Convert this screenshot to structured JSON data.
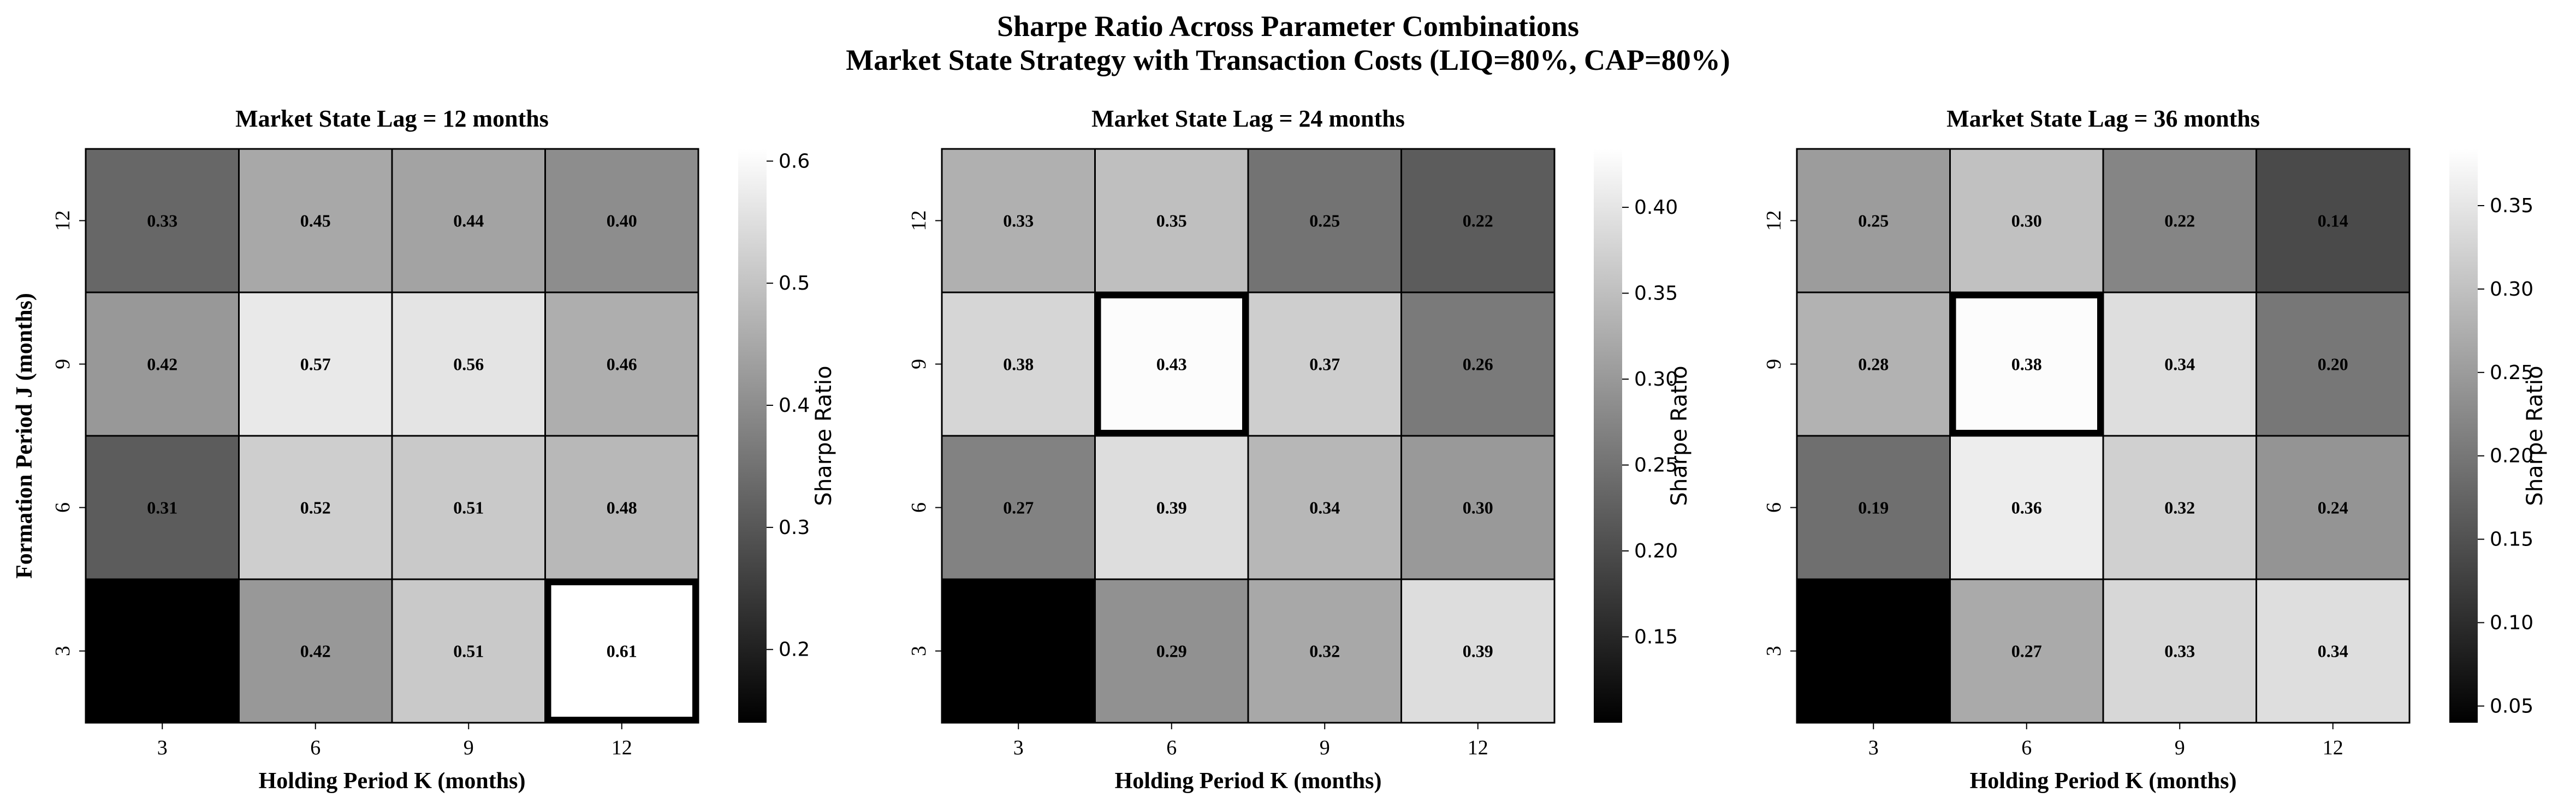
{
  "title_line1": "Sharpe Ratio Across Parameter Combinations",
  "title_line2": "Market State Strategy with Transaction Costs (LIQ=80%, CAP=80%)",
  "chart_data": [
    {
      "type": "heatmap",
      "title": "Market State Lag = 12 months",
      "xlabel": "Holding Period K (months)",
      "ylabel": "Formation Period J (months)",
      "x": [
        "3",
        "6",
        "9",
        "12"
      ],
      "y": [
        "12",
        "9",
        "6",
        "3"
      ],
      "values": [
        [
          0.33,
          0.45,
          0.44,
          0.4
        ],
        [
          0.42,
          0.57,
          0.56,
          0.46
        ],
        [
          0.31,
          0.52,
          0.51,
          0.48
        ],
        [
          0.14,
          0.42,
          0.51,
          0.61
        ]
      ],
      "labels": [
        [
          "0.33",
          "0.45",
          "0.44",
          "0.40"
        ],
        [
          "0.42",
          "0.57",
          "0.56",
          "0.46"
        ],
        [
          "0.31",
          "0.52",
          "0.51",
          "0.48"
        ],
        [
          "0.14",
          "0.42",
          "0.51",
          "0.61"
        ]
      ],
      "highlight": {
        "row": 3,
        "col": 3
      },
      "vmin": 0.14,
      "vmax": 0.61,
      "colorbar_label": "Sharpe Ratio",
      "colorbar_ticks": [
        "0.2",
        "0.3",
        "0.4",
        "0.5",
        "0.6"
      ],
      "colormap": "gray"
    },
    {
      "type": "heatmap",
      "title": "Market State Lag = 24 months",
      "xlabel": "Holding Period K (months)",
      "ylabel": "",
      "x": [
        "3",
        "6",
        "9",
        "12"
      ],
      "y": [
        "12",
        "9",
        "6",
        "3"
      ],
      "values": [
        [
          0.33,
          0.35,
          0.25,
          0.22
        ],
        [
          0.38,
          0.43,
          0.37,
          0.26
        ],
        [
          0.27,
          0.39,
          0.34,
          0.3
        ],
        [
          0.1,
          0.29,
          0.32,
          0.39
        ]
      ],
      "labels": [
        [
          "0.33",
          "0.35",
          "0.25",
          "0.22"
        ],
        [
          "0.38",
          "0.43",
          "0.37",
          "0.26"
        ],
        [
          "0.27",
          "0.39",
          "0.34",
          "0.30"
        ],
        [
          "0.10",
          "0.29",
          "0.32",
          "0.39"
        ]
      ],
      "highlight": {
        "row": 1,
        "col": 1
      },
      "vmin": 0.1,
      "vmax": 0.434,
      "colorbar_label": "Sharpe Ratio",
      "colorbar_ticks": [
        "0.15",
        "0.20",
        "0.25",
        "0.30",
        "0.35",
        "0.40"
      ],
      "colormap": "gray"
    },
    {
      "type": "heatmap",
      "title": "Market State Lag = 36 months",
      "xlabel": "Holding Period K (months)",
      "ylabel": "",
      "x": [
        "3",
        "6",
        "9",
        "12"
      ],
      "y": [
        "12",
        "9",
        "6",
        "3"
      ],
      "values": [
        [
          0.25,
          0.3,
          0.22,
          0.14
        ],
        [
          0.28,
          0.38,
          0.34,
          0.2
        ],
        [
          0.19,
          0.36,
          0.32,
          0.24
        ],
        [
          0.04,
          0.27,
          0.33,
          0.34
        ]
      ],
      "labels": [
        [
          "0.25",
          "0.30",
          "0.22",
          "0.14"
        ],
        [
          "0.28",
          "0.38",
          "0.34",
          "0.20"
        ],
        [
          "0.19",
          "0.36",
          "0.32",
          "0.24"
        ],
        [
          "0.04",
          "0.27",
          "0.33",
          "0.34"
        ]
      ],
      "highlight": {
        "row": 1,
        "col": 1
      },
      "vmin": 0.04,
      "vmax": 0.384,
      "colorbar_label": "Sharpe Ratio",
      "colorbar_ticks": [
        "0.05",
        "0.10",
        "0.15",
        "0.20",
        "0.25",
        "0.30",
        "0.35"
      ],
      "colormap": "gray"
    }
  ]
}
